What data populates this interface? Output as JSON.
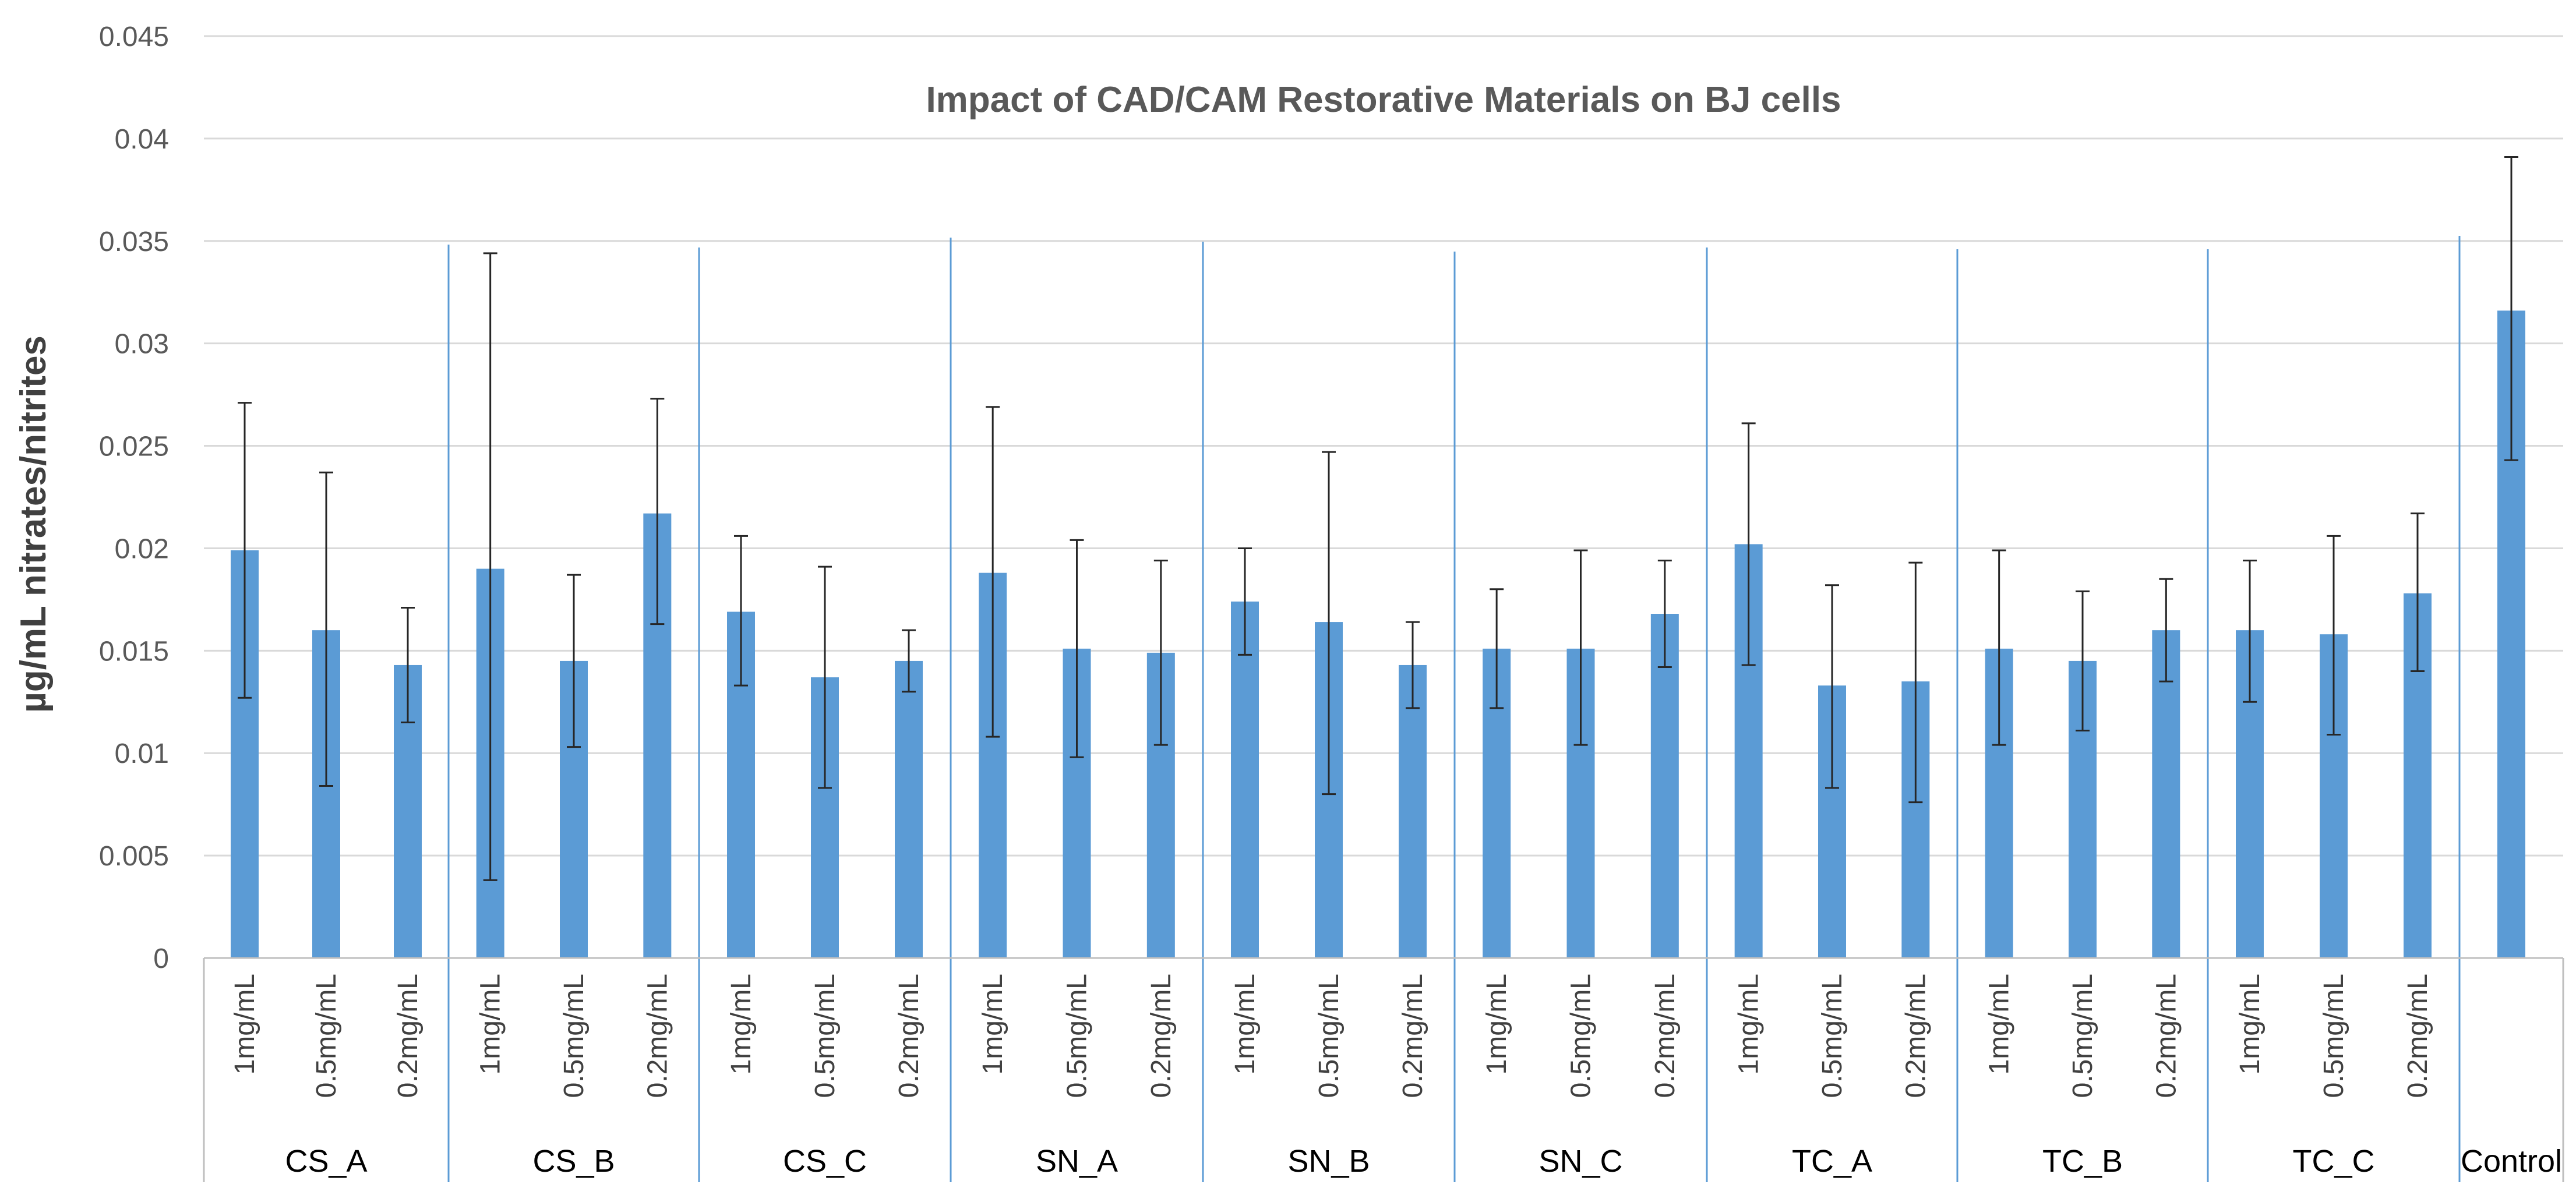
{
  "chart_data": {
    "type": "bar",
    "title": "Impact of CAD/CAM Restorative Materials on BJ cells",
    "xlabel": "",
    "ylabel": "µg/mL nitrates/nitrites",
    "ylim": [
      0,
      0.045
    ],
    "yticks": [
      "0",
      "0.005",
      "0.01",
      "0.015",
      "0.02",
      "0.025",
      "0.03",
      "0.035",
      "0.04",
      "0.045"
    ],
    "grid": true,
    "bar_color": "#5b9bd5",
    "groups": [
      {
        "name": "CS_A",
        "bars": [
          {
            "label": "1mg/mL",
            "value": 0.0199,
            "err_low": 0.0127,
            "err_high": 0.0271
          },
          {
            "label": "0.5mg/mL",
            "value": 0.016,
            "err_low": 0.0084,
            "err_high": 0.0237
          },
          {
            "label": "0.2mg/mL",
            "value": 0.0143,
            "err_low": 0.0115,
            "err_high": 0.0171
          }
        ]
      },
      {
        "name": "CS_B",
        "bars": [
          {
            "label": "1mg/mL",
            "value": 0.019,
            "err_low": 0.0038,
            "err_high": 0.0344
          },
          {
            "label": "0.5mg/mL",
            "value": 0.0145,
            "err_low": 0.0103,
            "err_high": 0.0187
          },
          {
            "label": "0.2mg/mL",
            "value": 0.0217,
            "err_low": 0.0163,
            "err_high": 0.0273
          }
        ]
      },
      {
        "name": "CS_C",
        "bars": [
          {
            "label": "1mg/mL",
            "value": 0.0169,
            "err_low": 0.0133,
            "err_high": 0.0206
          },
          {
            "label": "0.5mg/mL",
            "value": 0.0137,
            "err_low": 0.0083,
            "err_high": 0.0191
          },
          {
            "label": "0.2mg/mL",
            "value": 0.0145,
            "err_low": 0.013,
            "err_high": 0.016
          }
        ]
      },
      {
        "name": "SN_A",
        "bars": [
          {
            "label": "1mg/mL",
            "value": 0.0188,
            "err_low": 0.0108,
            "err_high": 0.0269
          },
          {
            "label": "0.5mg/mL",
            "value": 0.0151,
            "err_low": 0.0098,
            "err_high": 0.0204
          },
          {
            "label": "0.2mg/mL",
            "value": 0.0149,
            "err_low": 0.0104,
            "err_high": 0.0194
          }
        ]
      },
      {
        "name": "SN_B",
        "bars": [
          {
            "label": "1mg/mL",
            "value": 0.0174,
            "err_low": 0.0148,
            "err_high": 0.02
          },
          {
            "label": "0.5mg/mL",
            "value": 0.0164,
            "err_low": 0.008,
            "err_high": 0.0247
          },
          {
            "label": "0.2mg/mL",
            "value": 0.0143,
            "err_low": 0.0122,
            "err_high": 0.0164
          }
        ]
      },
      {
        "name": "SN_C",
        "bars": [
          {
            "label": "1mg/mL",
            "value": 0.0151,
            "err_low": 0.0122,
            "err_high": 0.018
          },
          {
            "label": "0.5mg/mL",
            "value": 0.0151,
            "err_low": 0.0104,
            "err_high": 0.0199
          },
          {
            "label": "0.2mg/mL",
            "value": 0.0168,
            "err_low": 0.0142,
            "err_high": 0.0194
          }
        ]
      },
      {
        "name": "TC_A",
        "bars": [
          {
            "label": "1mg/mL",
            "value": 0.0202,
            "err_low": 0.0143,
            "err_high": 0.0261
          },
          {
            "label": "0.5mg/mL",
            "value": 0.0133,
            "err_low": 0.0083,
            "err_high": 0.0182
          },
          {
            "label": "0.2mg/mL",
            "value": 0.0135,
            "err_low": 0.0076,
            "err_high": 0.0193
          }
        ]
      },
      {
        "name": "TC_B",
        "bars": [
          {
            "label": "1mg/mL",
            "value": 0.0151,
            "err_low": 0.0104,
            "err_high": 0.0199
          },
          {
            "label": "0.5mg/mL",
            "value": 0.0145,
            "err_low": 0.0111,
            "err_high": 0.0179
          },
          {
            "label": "0.2mg/mL",
            "value": 0.016,
            "err_low": 0.0135,
            "err_high": 0.0185
          }
        ]
      },
      {
        "name": "TC_C",
        "bars": [
          {
            "label": "1mg/mL",
            "value": 0.016,
            "err_low": 0.0125,
            "err_high": 0.0194
          },
          {
            "label": "0.5mg/mL",
            "value": 0.0158,
            "err_low": 0.0109,
            "err_high": 0.0206
          },
          {
            "label": "0.2mg/mL",
            "value": 0.0178,
            "err_low": 0.014,
            "err_high": 0.0217
          }
        ]
      },
      {
        "name": "Control",
        "bars": [
          {
            "label": "",
            "value": 0.0316,
            "err_low": 0.0243,
            "err_high": 0.0391
          }
        ]
      }
    ]
  }
}
